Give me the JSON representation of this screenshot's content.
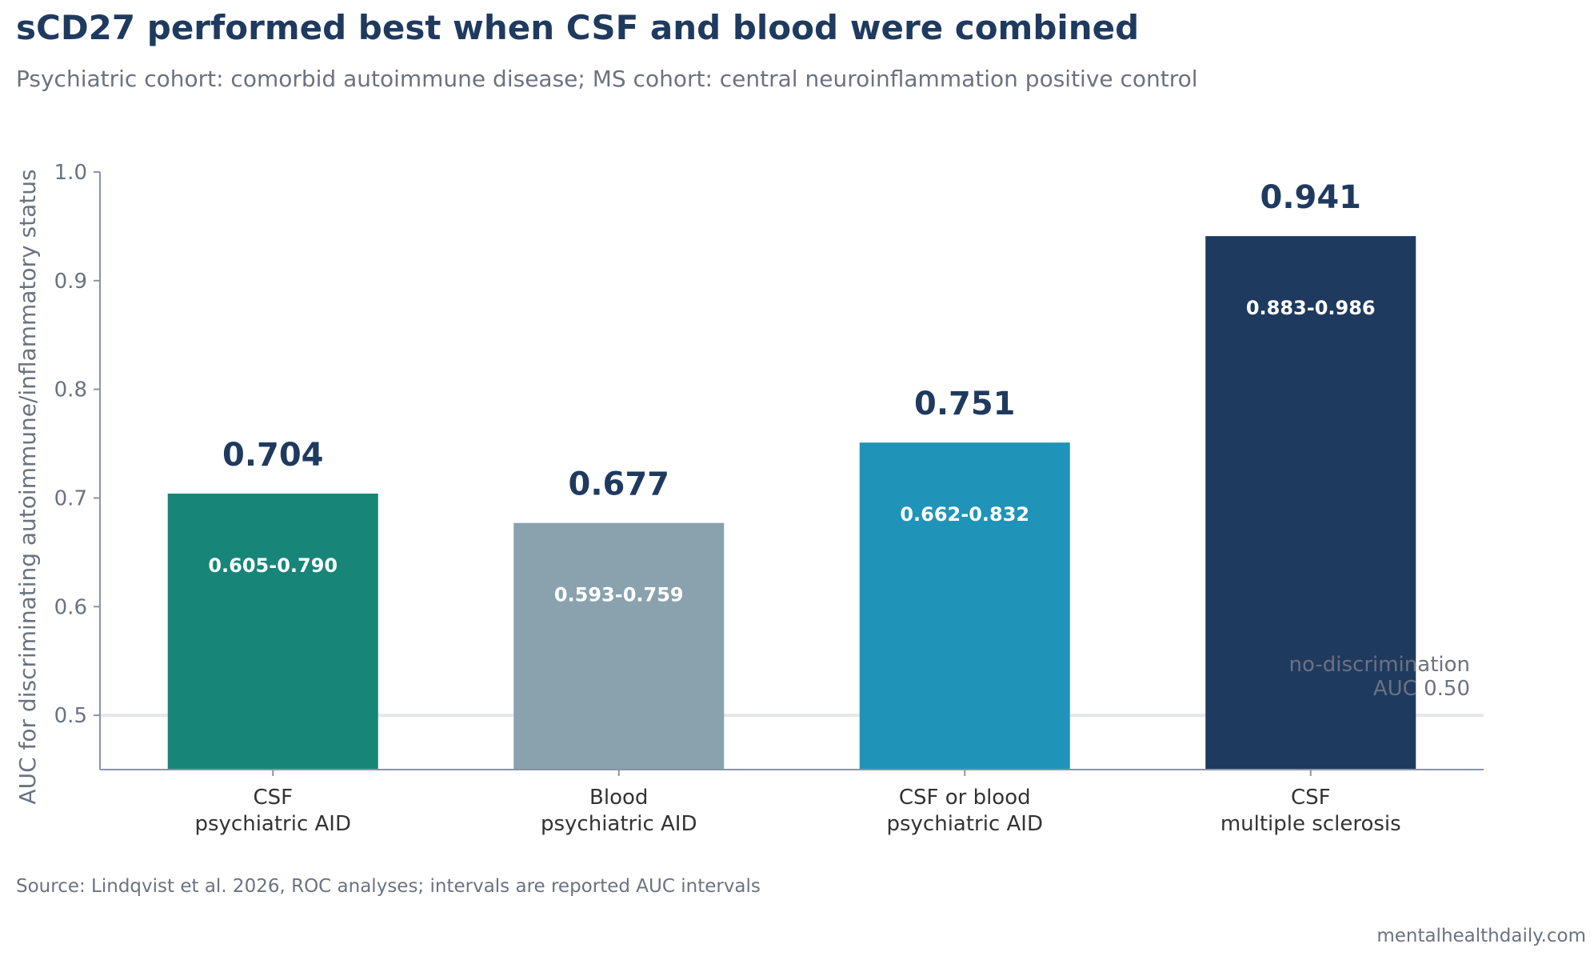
{
  "header": {
    "title": "sCD27 performed best when CSF and blood were combined",
    "subtitle": "Psychiatric cohort: comorbid autoimmune disease; MS cohort: central neuroinflammation positive control"
  },
  "footer": {
    "source": "Source: Lindqvist et al. 2026, ROC analyses; intervals are reported AUC intervals",
    "brand": "mentalhealthdaily.com"
  },
  "chart_data": {
    "type": "bar",
    "title": "sCD27 performed best when CSF and blood were combined",
    "subtitle": "Psychiatric cohort: comorbid autoimmune disease; MS cohort: central neuroinflammation positive control",
    "xlabel": "",
    "ylabel": "AUC for discriminating autoimmune/inflammatory status",
    "ylim": [
      0.45,
      1.0
    ],
    "yticks": [
      0.5,
      0.6,
      0.7,
      0.8,
      0.9,
      1.0
    ],
    "ytick_labels": [
      "0.5",
      "0.6",
      "0.7",
      "0.8",
      "0.9",
      "1.0"
    ],
    "grid": false,
    "categories": [
      [
        "CSF",
        "psychiatric AID"
      ],
      [
        "Blood",
        "psychiatric AID"
      ],
      [
        "CSF or blood",
        "psychiatric AID"
      ],
      [
        "CSF",
        "multiple sclerosis"
      ]
    ],
    "values": [
      0.704,
      0.677,
      0.751,
      0.941
    ],
    "value_labels": [
      "0.704",
      "0.677",
      "0.751",
      "0.941"
    ],
    "interval_labels": [
      "0.605-0.790",
      "0.593-0.759",
      "0.662-0.832",
      "0.883-0.986"
    ],
    "colors": [
      "#178577",
      "#8aa2ae",
      "#1f94b8",
      "#1f3a5f"
    ],
    "reference_line": {
      "value": 0.5,
      "label_lines": [
        "no-discrimination",
        "AUC 0.50"
      ],
      "color": "#e5e7eb"
    },
    "value_label_color": "#1f3a5f",
    "interval_label_color": "#ffffff",
    "axis_color": "#8a94a6",
    "tick_label_color": "#6b7280",
    "category_label_color": "#333333"
  }
}
